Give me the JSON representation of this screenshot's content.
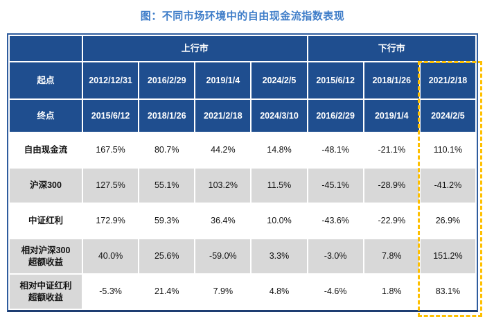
{
  "title": "图：不同市场环境中的自由现金流指数表现",
  "colors": {
    "title_text": "#3d7cc8",
    "header_bg": "#1f4e8f",
    "header_text": "#ffffff",
    "alt_row_bg": "#d8d8d8",
    "outer_border": "#2e5c9e",
    "highlight_dashed_border": "#ffc000"
  },
  "chart_data": {
    "type": "table",
    "title": "图：不同市场环境中的自由现金流指数表现",
    "column_groups": [
      {
        "label": "上行市",
        "span": 4
      },
      {
        "label": "下行市",
        "span": 3
      }
    ],
    "header_rows": [
      {
        "label": "起点",
        "values": [
          "2012/12/31",
          "2016/2/29",
          "2019/1/4",
          "2024/2/5",
          "2015/6/12",
          "2018/1/26",
          "2021/2/18"
        ]
      },
      {
        "label": "终点",
        "values": [
          "2015/6/12",
          "2018/1/26",
          "2021/2/18",
          "2024/3/10",
          "2016/2/29",
          "2019/1/4",
          "2024/2/5"
        ]
      }
    ],
    "rows": [
      {
        "label": "自由现金流",
        "label2": "",
        "values": [
          "167.5%",
          "80.7%",
          "44.2%",
          "14.8%",
          "-48.1%",
          "-21.1%",
          "110.1%"
        ]
      },
      {
        "label": "沪深300",
        "label2": "",
        "values": [
          "127.5%",
          "55.1%",
          "103.2%",
          "11.5%",
          "-45.1%",
          "-28.9%",
          "-41.2%"
        ]
      },
      {
        "label": "中证红利",
        "label2": "",
        "values": [
          "172.9%",
          "59.3%",
          "36.4%",
          "10.0%",
          "-43.6%",
          "-22.9%",
          "26.9%"
        ]
      },
      {
        "label": "相对沪深300",
        "label2": "超额收益",
        "values": [
          "40.0%",
          "25.6%",
          "-59.0%",
          "3.3%",
          "-3.0%",
          "7.8%",
          "151.2%"
        ]
      },
      {
        "label": "相对中证红利",
        "label2": "超额收益",
        "values": [
          "-5.3%",
          "21.4%",
          "7.9%",
          "4.8%",
          "-4.6%",
          "1.8%",
          "83.1%"
        ]
      }
    ],
    "highlight": {
      "column_index": 6,
      "start_date": "2021/2/18",
      "end_date": "2024/2/5"
    }
  }
}
